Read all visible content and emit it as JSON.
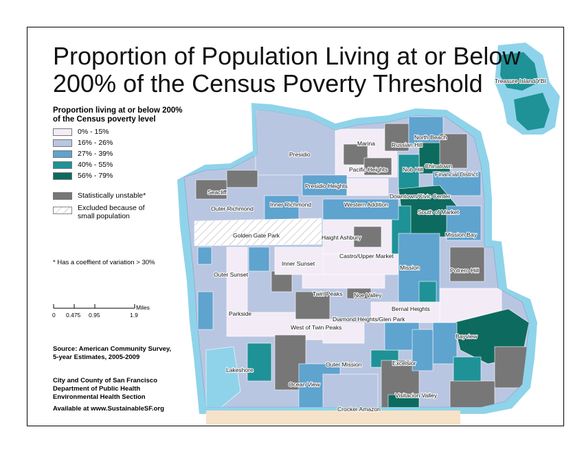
{
  "title": {
    "line1": "Proportion of Population Living at or Below",
    "line2": "200% of the Census Poverty Threshold"
  },
  "legend": {
    "title_line1": "Proportion living at or below 200%",
    "title_line2": "of the Census poverty level",
    "classes": [
      {
        "label": "0% - 15%",
        "color": "#f3ecf6"
      },
      {
        "label": "16% - 26%",
        "color": "#b9c6e2"
      },
      {
        "label": "27% - 39%",
        "color": "#5fa3cf"
      },
      {
        "label": "40% - 55%",
        "color": "#1e9296"
      },
      {
        "label": "56% - 79%",
        "color": "#0c6b5e"
      }
    ],
    "unstable_label": "Statistically unstable*",
    "unstable_color": "#777777",
    "excluded_line1": "Excluded because of",
    "excluded_line2": "small population"
  },
  "cv_note": "* Has a coeffient of variation > 30%",
  "scale": {
    "unit": "Miles",
    "ticks": [
      "0",
      "0.475",
      "0.95",
      "1.9"
    ]
  },
  "source": {
    "line1": "Source: American Community Survey,",
    "line2": "5-year Estimates, 2005-2009"
  },
  "agency": {
    "line1": "City and County of San Francisco",
    "line2": "Department of Public Health",
    "line3": "Environmental Health Section"
  },
  "available": "Available at www.SustainableSF.org",
  "colors": {
    "water_halo": "#8fd3ea",
    "park_hatch": "#bbbbbb",
    "south_county": "#f6e2c8"
  },
  "neighborhoods": {
    "treasure_island": "Treasure Island/YBI",
    "north_beach": "North Beach",
    "marina": "Marina",
    "russian_hill": "Russian Hill",
    "chinatown": "Chinatown",
    "presidio": "Presidio",
    "pacific_heights": "Pacific Heights",
    "nob_hill": "Nob Hill",
    "financial_district": "Financial District",
    "seacliff": "Seacliff",
    "presidio_heights": "Presidio Heights",
    "downtown": "Downtown/Civic Center",
    "outer_richmond": "Outer Richmond",
    "inner_richmond": "Inner Richmond",
    "western_addition": "Western Addition",
    "south_of_market": "South of Market",
    "golden_gate_park": "Golden Gate Park",
    "haight_ashbury": "Haight Ashbury",
    "mission_bay": "Mission Bay",
    "castro": "Castro/Upper Market",
    "inner_sunset": "Inner Sunset",
    "mission": "Mission",
    "outer_sunset": "Outer Sunset",
    "potrero_hill": "Potrero Hill",
    "twin_peaks": "Twin Peaks",
    "noe_valley": "Noe Valley",
    "bernal_heights": "Bernal Heights",
    "parkside": "Parkside",
    "diamond_heights": "Diamond Heights/Glen Park",
    "west_twin_peaks": "West of Twin Peaks",
    "bayview": "Bayview",
    "lakeshore": "Lakeshore",
    "outer_mission": "Outer Mission",
    "excelsior": "Excelsior",
    "ocean_view": "Ocean View",
    "visitacion_valley": "Visitacion Valley",
    "crocker_amazon": "Crocker Amazon"
  }
}
